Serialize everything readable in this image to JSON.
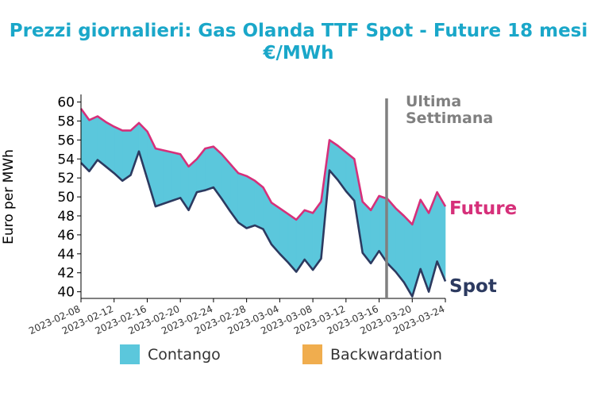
{
  "chart_data": {
    "type": "area",
    "title": "Prezzi giornalieri: Gas Olanda TTF Spot - Future 18 mesi",
    "subtitle": "€/MWh",
    "ylabel": "Euro per MWh",
    "xlabel": "",
    "ylim": [
      39.3,
      60.8
    ],
    "xlim": [
      "2023-02-08",
      "2023-03-24"
    ],
    "yticks": [
      40,
      42,
      44,
      46,
      48,
      50,
      52,
      54,
      56,
      58,
      60
    ],
    "xticks": [
      "2023-02-08",
      "2023-02-12",
      "2023-02-16",
      "2023-02-20",
      "2023-02-24",
      "2023-02-28",
      "2023-03-04",
      "2023-03-08",
      "2023-03-12",
      "2023-03-16",
      "2023-03-20",
      "2023-03-24"
    ],
    "grid": false,
    "x": [
      "2023-02-08",
      "2023-02-09",
      "2023-02-10",
      "2023-02-11",
      "2023-02-12",
      "2023-02-13",
      "2023-02-14",
      "2023-02-15",
      "2023-02-16",
      "2023-02-17",
      "2023-02-18",
      "2023-02-19",
      "2023-02-20",
      "2023-02-21",
      "2023-02-22",
      "2023-02-23",
      "2023-02-24",
      "2023-02-25",
      "2023-02-26",
      "2023-02-27",
      "2023-02-28",
      "2023-03-01",
      "2023-03-02",
      "2023-03-03",
      "2023-03-04",
      "2023-03-05",
      "2023-03-06",
      "2023-03-07",
      "2023-03-08",
      "2023-03-09",
      "2023-03-10",
      "2023-03-11",
      "2023-03-12",
      "2023-03-13",
      "2023-03-14",
      "2023-03-15",
      "2023-03-16",
      "2023-03-17",
      "2023-03-18",
      "2023-03-19",
      "2023-03-20",
      "2023-03-21",
      "2023-03-22",
      "2023-03-23",
      "2023-03-24"
    ],
    "series": [
      {
        "name": "Future",
        "color": "#d6307a",
        "values": [
          59.3,
          58.1,
          58.5,
          57.9,
          57.4,
          57.0,
          57.0,
          57.8,
          56.9,
          55.1,
          54.9,
          54.7,
          54.5,
          53.2,
          54.0,
          55.1,
          55.3,
          54.5,
          53.5,
          52.5,
          52.2,
          51.7,
          51.0,
          49.4,
          48.8,
          48.2,
          47.6,
          48.6,
          48.3,
          49.5,
          56.0,
          55.4,
          54.7,
          54.0,
          49.5,
          48.6,
          50.1,
          49.8,
          48.8,
          48.0,
          47.1,
          49.7,
          48.3,
          50.5,
          49.0
        ]
      },
      {
        "name": "Spot",
        "color": "#2c3a60",
        "values": [
          53.6,
          52.7,
          53.9,
          53.2,
          52.5,
          51.7,
          52.3,
          54.8,
          51.9,
          49.0,
          49.3,
          49.6,
          49.9,
          48.6,
          50.5,
          50.7,
          51.0,
          49.8,
          48.5,
          47.3,
          46.7,
          47.0,
          46.6,
          45.0,
          44.0,
          43.1,
          42.1,
          43.4,
          42.3,
          43.5,
          52.8,
          51.8,
          50.6,
          49.6,
          44.1,
          43.0,
          44.3,
          43.0,
          42.1,
          41.0,
          39.5,
          42.4,
          40.0,
          43.2,
          41.1
        ]
      }
    ],
    "fill": {
      "contango_color": "#5bc7dc",
      "backwardation_color": "#f0ad4e"
    },
    "legend": {
      "placement": "bottom",
      "items": [
        {
          "label": "Contango",
          "color": "#5bc7dc"
        },
        {
          "label": "Backwardation",
          "color": "#f0ad4e"
        }
      ]
    },
    "annotation": {
      "x": "2023-03-17",
      "lines": [
        "Ultima",
        "Settimana"
      ],
      "color": "#808080"
    }
  }
}
